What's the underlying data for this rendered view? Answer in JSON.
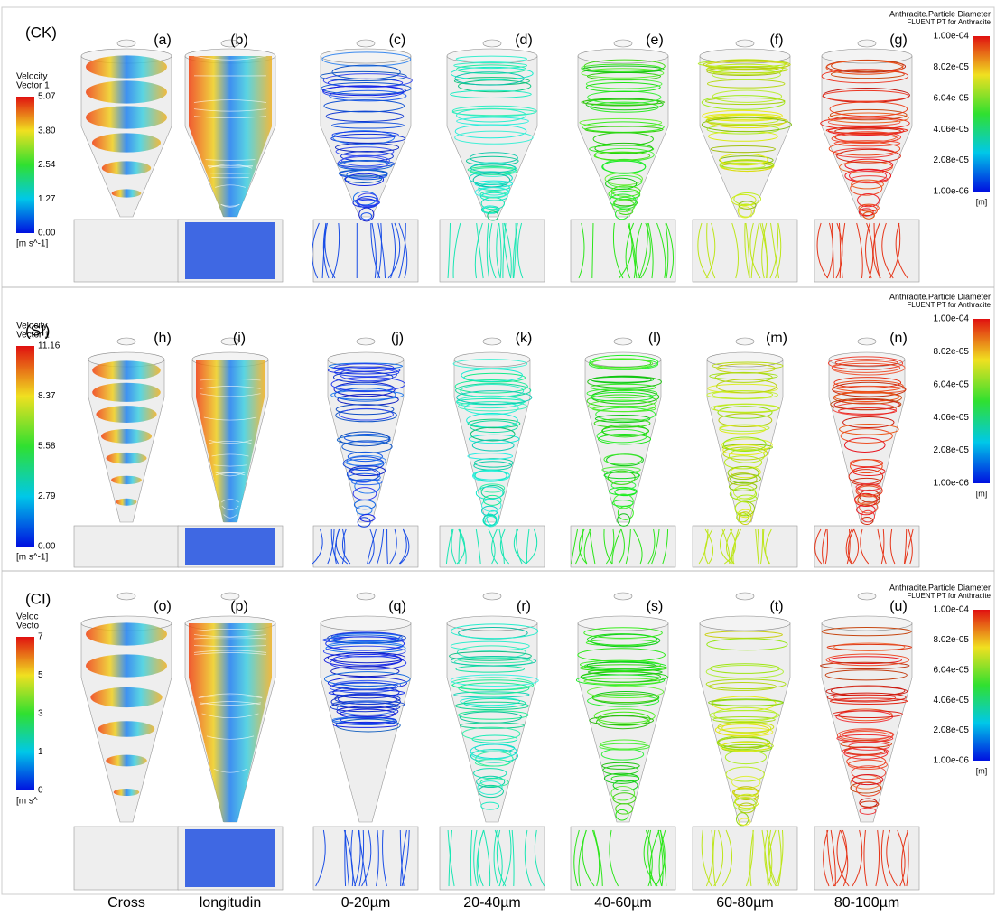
{
  "rows": [
    {
      "label": "(CK)",
      "panels": [
        "(a)",
        "(b)",
        "(c)",
        "(d)",
        "(e)",
        "(f)",
        "(g)"
      ],
      "velocity_legend": {
        "title": "Velocity",
        "subtitle": "Vector 1",
        "ticks": [
          "5.07",
          "3.80",
          "2.54",
          "1.27",
          "0.00"
        ],
        "unit": "[m s^-1]"
      },
      "diameter_legend": {
        "title": "Anthracite.Particle Diameter",
        "subtitle": "FLUENT PT for Anthracite",
        "ticks": [
          "1.00e-04",
          "8.02e-05",
          "6.04e-05",
          "4.06e-05",
          "2.08e-05",
          "1.00e-06"
        ],
        "unit": "[m]"
      }
    },
    {
      "label": "(SI)",
      "panels": [
        "(h)",
        "(i)",
        "(j)",
        "(k)",
        "(l)",
        "(m)",
        "(n)"
      ],
      "velocity_legend": {
        "title": "Velocity",
        "subtitle": "Vector 1",
        "ticks": [
          "11.16",
          "8.37",
          "5.58",
          "2.79",
          "0.00"
        ],
        "unit": "[m s^-1]"
      },
      "diameter_legend": {
        "title": "Anthracite.Particle Diameter",
        "subtitle": "FLUENT PT for Anthracite",
        "ticks": [
          "1.00e-04",
          "8.02e-05",
          "6.04e-05",
          "4.06e-05",
          "2.08e-05",
          "1.00e-06"
        ],
        "unit": "[m]"
      }
    },
    {
      "label": "(CI)",
      "panels": [
        "(o)",
        "(p)",
        "(q)",
        "(r)",
        "(s)",
        "(t)",
        "(u)"
      ],
      "velocity_legend": {
        "title": "Veloc",
        "subtitle": "Vecto",
        "ticks": [
          "7",
          "5",
          "3",
          "1",
          "0"
        ],
        "unit": "[m s^"
      },
      "diameter_legend": {
        "title": "Anthracite.Particle Diameter",
        "subtitle": "FLUENT PT for Anthracite",
        "ticks": [
          "1.00e-04",
          "8.02e-05",
          "6.04e-05",
          "4.06e-05",
          "2.08e-05",
          "1.00e-06"
        ],
        "unit": "[m]"
      }
    }
  ],
  "columns": [
    "Cross",
    "longitudin",
    "0-20µm",
    "20-40µm",
    "40-60µm",
    "60-80µm",
    "80-100µm"
  ]
}
